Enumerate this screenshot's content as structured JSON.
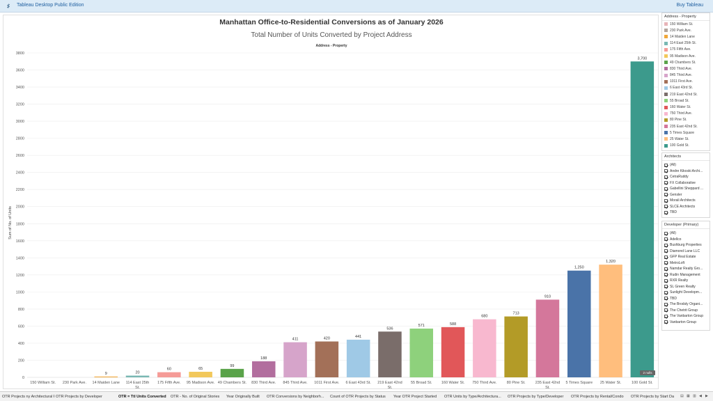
{
  "app": {
    "logo": "♯",
    "title": "Tableau Desktop Public Edition",
    "buy": "Buy Tableau"
  },
  "titles": {
    "main": "Manhattan Office-to-Residential Conversions as of January 2026",
    "sub": "Total Number of Units Converted by Project Address",
    "column_header": "Address - Property"
  },
  "chart_data": {
    "type": "bar",
    "title": "Manhattan Office-to-Residential Conversions as of January 2026",
    "subtitle": "Total Number of Units Converted by Project Address",
    "xlabel": "Address - Property",
    "ylabel": "Sum of No. of Units",
    "ylim": [
      0,
      3800
    ],
    "yticks": [
      0,
      200,
      400,
      600,
      800,
      1000,
      1200,
      1400,
      1600,
      1800,
      2000,
      2200,
      2400,
      2600,
      2800,
      3000,
      3200,
      3400,
      3600,
      3800
    ],
    "grid": true,
    "categories": [
      "150 William St.",
      "230 Park Ave.",
      "14 Maiden Lane",
      "114 East 25th St.",
      "175 Fifth Ave.",
      "95 Madison Ave.",
      "49 Chambers St.",
      "830 Third Ave.",
      "845 Third Ave.",
      "1011 First Ave.",
      "6 East 43rd St.",
      "219 East 42nd St.",
      "55 Broad St.",
      "160 Water St.",
      "750 Third Ave.",
      "80 Pine St.",
      "235 East 42nd St.",
      "5 Times Square",
      "25 Water St.",
      "100 Gold St."
    ],
    "tick_labels": [
      [
        "150 William St."
      ],
      [
        "230 Park Ave."
      ],
      [
        "14 Maiden Lane"
      ],
      [
        "114 East 25th",
        "St."
      ],
      [
        "175 Fifth Ave."
      ],
      [
        "95 Madison Ave."
      ],
      [
        "49 Chambers St."
      ],
      [
        "830 Third Ave."
      ],
      [
        "845 Third Ave."
      ],
      [
        "1011 First Ave."
      ],
      [
        "6 East 43rd St."
      ],
      [
        "219 East 42nd",
        "St."
      ],
      [
        "55 Broad St."
      ],
      [
        "160 Water St."
      ],
      [
        "750 Third Ave."
      ],
      [
        "80 Pine St."
      ],
      [
        "235 East 42nd",
        "St."
      ],
      [
        "5 Times Square"
      ],
      [
        "25 Water St."
      ],
      [
        "100 Gold St."
      ]
    ],
    "values": [
      0,
      0,
      9,
      20,
      60,
      65,
      99,
      188,
      411,
      420,
      441,
      536,
      571,
      588,
      680,
      713,
      910,
      1250,
      1320,
      3700
    ],
    "data_labels": [
      "",
      "",
      "9",
      "20",
      "60",
      "65",
      "99",
      "188",
      "411",
      "420",
      "441",
      "536",
      "571",
      "588",
      "680",
      "713",
      "910",
      "1,250",
      "1,320",
      "3,700"
    ],
    "colors": [
      "#e8b4b8",
      "#b3a59c",
      "#f0a73a",
      "#79b8b3",
      "#f59b97",
      "#f2c85b",
      "#5aa34a",
      "#b26e9e",
      "#d6a4ca",
      "#a37058",
      "#9fc9e6",
      "#7a6d6a",
      "#8ed17c",
      "#e15759",
      "#f8b8cf",
      "#b39b27",
      "#d4779b",
      "#4a73a8",
      "#ffbe7d",
      "#3c9a8c"
    ],
    "null_badge": "2 nulls",
    "legend_position": "right"
  },
  "legend": {
    "title": "Address - Property",
    "items": [
      {
        "label": "150 William St.",
        "color": "#e8b4b8"
      },
      {
        "label": "230 Park Ave.",
        "color": "#b3a59c"
      },
      {
        "label": "14 Maiden Lane",
        "color": "#f0a73a"
      },
      {
        "label": "114 East 25th St.",
        "color": "#79b8b3"
      },
      {
        "label": "175 Fifth Ave.",
        "color": "#f59b97"
      },
      {
        "label": "95 Madison Ave.",
        "color": "#f2c85b"
      },
      {
        "label": "49 Chambers St.",
        "color": "#5aa34a"
      },
      {
        "label": "830 Third Ave.",
        "color": "#b26e9e"
      },
      {
        "label": "845 Third Ave.",
        "color": "#d6a4ca"
      },
      {
        "label": "1011 First Ave.",
        "color": "#a37058"
      },
      {
        "label": "6 East 43rd St.",
        "color": "#9fc9e6"
      },
      {
        "label": "219 East 42nd St.",
        "color": "#7a6d6a"
      },
      {
        "label": "55 Broad St.",
        "color": "#8ed17c"
      },
      {
        "label": "160 Water St.",
        "color": "#e15759"
      },
      {
        "label": "750 Third Ave.",
        "color": "#f8b8cf"
      },
      {
        "label": "80 Pine St.",
        "color": "#b39b27"
      },
      {
        "label": "235 East 42nd St.",
        "color": "#d4779b"
      },
      {
        "label": "5 Times Square",
        "color": "#4a73a8"
      },
      {
        "label": "25 Water St.",
        "color": "#ffbe7d"
      },
      {
        "label": "100 Gold St.",
        "color": "#3c9a8c"
      }
    ]
  },
  "filters": {
    "architects": {
      "title": "Architects",
      "items": [
        "(All)",
        "Andre Kikoski Archi...",
        "CetraRuddy",
        "FX Collaborative",
        "Gabellini Sheppard ...",
        "Gensler",
        "Morali Architects",
        "SLCE Architects",
        "TBD"
      ]
    },
    "developer": {
      "title": "Developer (Primary)",
      "items": [
        "(All)",
        "Adellco",
        "Bushburg Properties",
        "Diamond Lane LLC",
        "GFP Real Estate",
        "MetroLoft",
        "Namdar Realty Gro...",
        "Rudin Management",
        "RXR Realty",
        "SL Green Realty",
        "Sunlight Developm...",
        "TBD",
        "The Brodsly Organi...",
        "The Chetrit Group",
        "The Vanbarton Group",
        "Vanbarton Group"
      ]
    }
  },
  "tabs": [
    {
      "label": "OTR Projects ny Architectural Fi...",
      "active": false
    },
    {
      "label": "OTR Projects by Developer",
      "active": false
    },
    {
      "label": "OTR = Ttl Units Converted",
      "active": true
    },
    {
      "label": "OTR - No. of Original Stories",
      "active": false
    },
    {
      "label": "Year Originally Built",
      "active": false
    },
    {
      "label": "OTR Conversions by Neighborh...",
      "active": false
    },
    {
      "label": "Count of OTR Projects by Status",
      "active": false
    },
    {
      "label": "Year OTR Project Started",
      "active": false
    },
    {
      "label": "OTR Units by Type/Architectura...",
      "active": false
    },
    {
      "label": "OTR Projects by Type/Developer",
      "active": false
    },
    {
      "label": "OTR Projects by Rental/Condo",
      "active": false
    },
    {
      "label": "OTR Projects by Start Da",
      "active": false
    }
  ],
  "tab_controls": [
    "▤",
    "▦",
    "▥",
    "◀",
    "▶"
  ]
}
